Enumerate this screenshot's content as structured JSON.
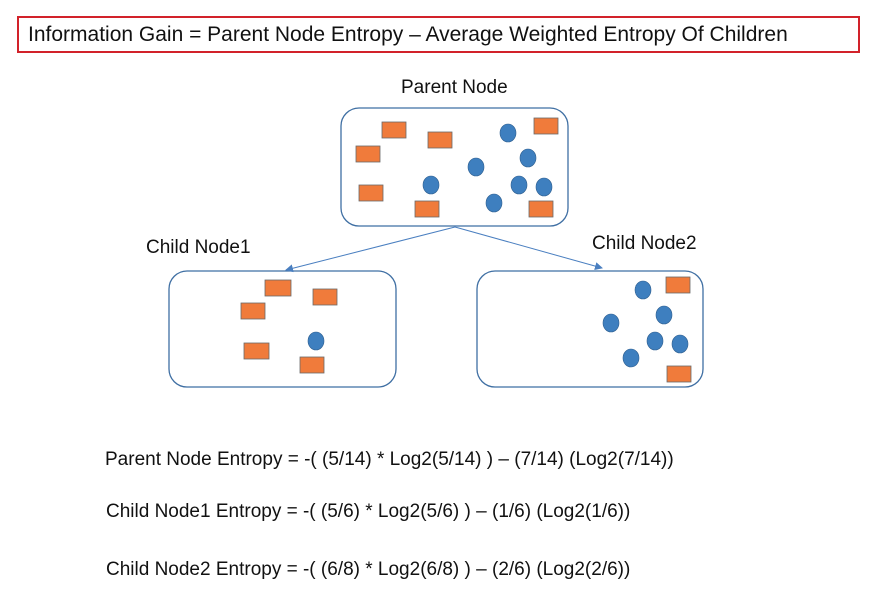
{
  "header": {
    "formula": "Information Gain = Parent Node Entropy – Average Weighted Entropy Of Children"
  },
  "nodes": {
    "parent": {
      "label": "Parent Node"
    },
    "child1": {
      "label": "Child Node1"
    },
    "child2": {
      "label": "Child Node2"
    }
  },
  "equations": [
    "Parent Node Entropy = -( (5/14)  * Log2(5/14)  ) – (7/14)  (Log2(7/14))",
    "Child Node1 Entropy = -( (5/6)  * Log2(5/6)  ) – (1/6)  (Log2(1/6))",
    "Child Node2 Entropy = -( (6/8)  * Log2(6/8)  ) – (2/6)  (Log2(2/6))"
  ],
  "colors": {
    "rect_fill": "#f07b3b",
    "circle_fill": "#3e7fbf",
    "box_border": "#3f6fa3",
    "header_border": "#d2222a",
    "arrow": "#4a7fc0"
  }
}
